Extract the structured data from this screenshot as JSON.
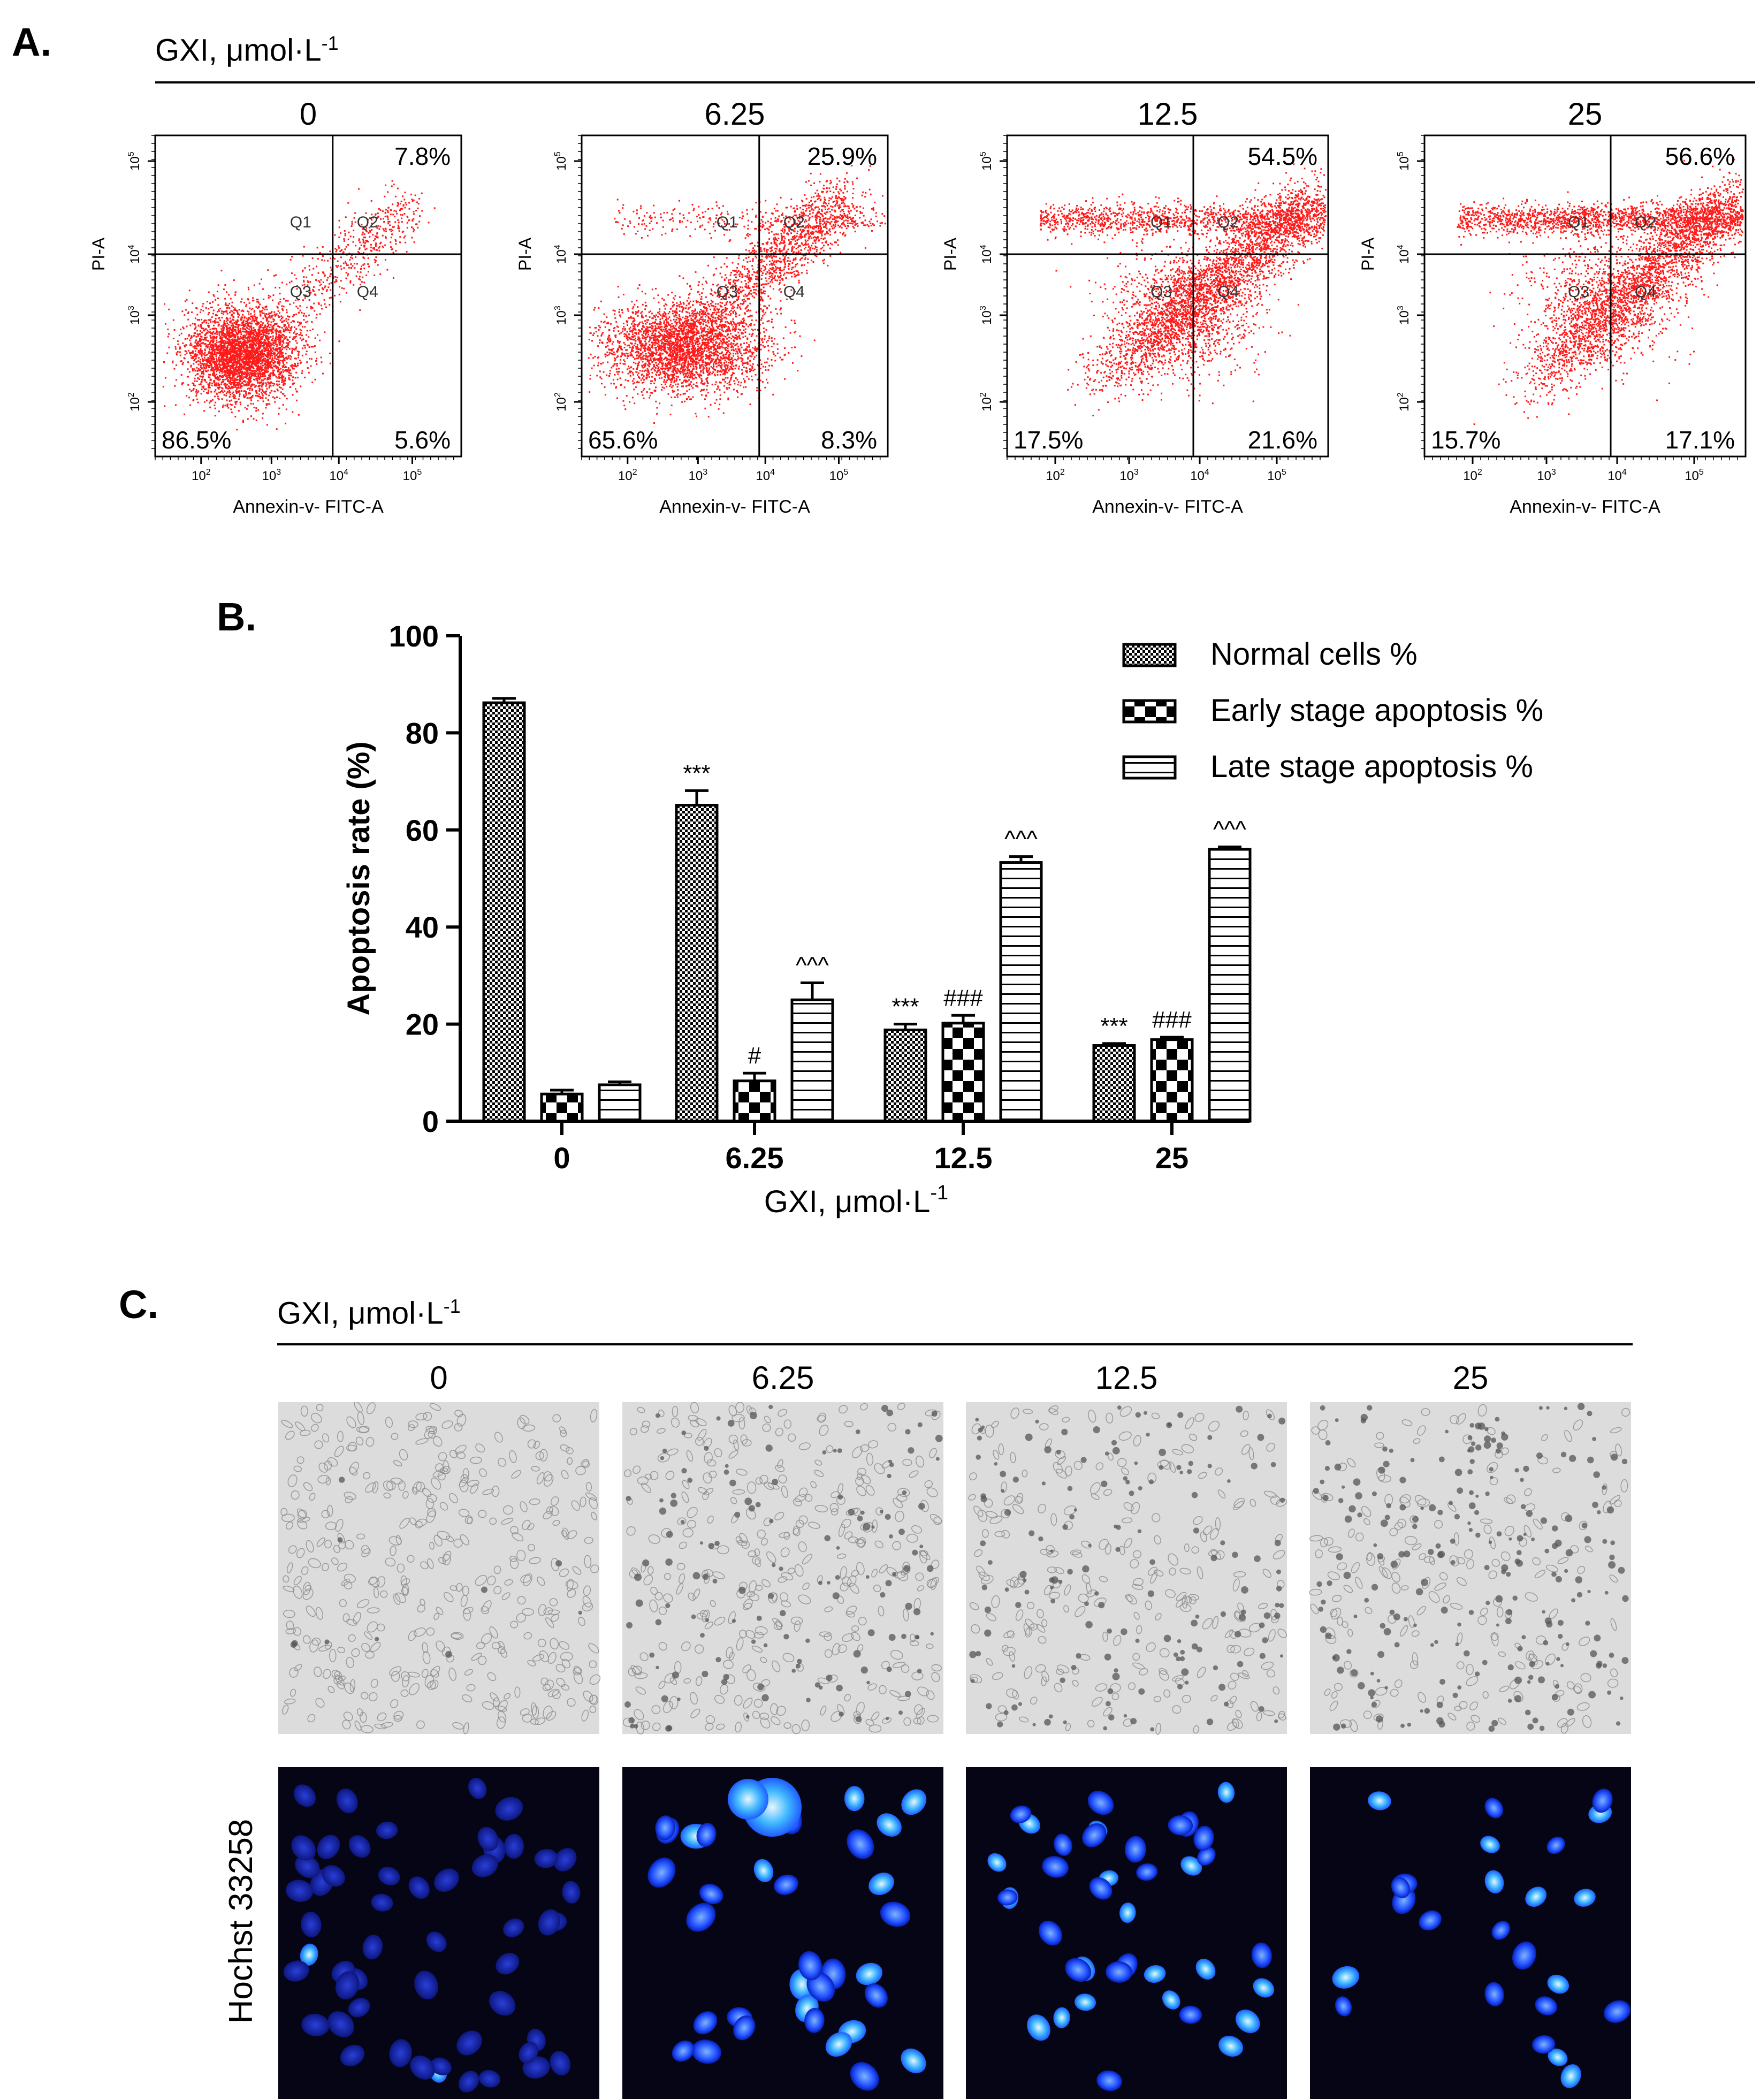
{
  "panel_a": {
    "label": "A.",
    "header": "GXI, μmol·L",
    "header_sup": "-1",
    "plots": [
      {
        "dose": "0",
        "q2": "7.8%",
        "q3": "86.5%",
        "q4": "5.6%"
      },
      {
        "dose": "6.25",
        "q2": "25.9%",
        "q3": "65.6%",
        "q4": "8.3%"
      },
      {
        "dose": "12.5",
        "q2": "54.5%",
        "q3": "17.5%",
        "q4": "21.6%"
      },
      {
        "dose": "25",
        "q2": "56.6%",
        "q3": "15.7%",
        "q4": "17.1%"
      }
    ],
    "quadrant_labels": [
      "Q1",
      "Q2",
      "Q3",
      "Q4"
    ],
    "y_label": "PI-A",
    "x_label": "Annexin-v- FITC-A",
    "tick_base": "10",
    "y_ticks": [
      "2",
      "3",
      "4",
      "5"
    ],
    "x_ticks": [
      "2",
      "3",
      "4",
      "5"
    ]
  },
  "panel_b": {
    "label": "B."
  },
  "chart_data": {
    "type": "bar",
    "categories": [
      "0",
      "6.25",
      "12.5",
      "25"
    ],
    "xlabel": "GXI, μmol·L",
    "xlabel_sup": "-1",
    "ylabel": "Apoptosis rate (%)",
    "ylim": [
      0,
      100
    ],
    "yticks": [
      "0",
      "20",
      "40",
      "60",
      "80",
      "100"
    ],
    "legend_position": "top-right",
    "series": [
      {
        "name": "Normal cells %",
        "values": [
          86.2,
          65.1,
          18.8,
          15.6
        ],
        "errors": [
          0.9,
          3.0,
          1.2,
          0.4
        ],
        "marks": [
          "",
          "***",
          "***",
          "***"
        ]
      },
      {
        "name": "Early stage apoptosis %",
        "values": [
          5.6,
          8.3,
          20.2,
          16.8
        ],
        "errors": [
          0.8,
          1.6,
          1.6,
          0.5
        ],
        "marks": [
          "",
          "#",
          "###",
          "###"
        ]
      },
      {
        "name": "Late stage apoptosis %",
        "values": [
          7.5,
          25.0,
          53.3,
          56.0
        ],
        "errors": [
          0.6,
          3.5,
          1.2,
          0.5
        ],
        "marks": [
          "",
          "^^^",
          "^^^",
          "^^^"
        ]
      }
    ]
  },
  "panel_c": {
    "label": "C.",
    "header": "GXI, μmol·L",
    "header_sup": "-1",
    "doses": [
      "0",
      "6.25",
      "12.5",
      "25"
    ],
    "row_label": "Hochst 33258"
  }
}
